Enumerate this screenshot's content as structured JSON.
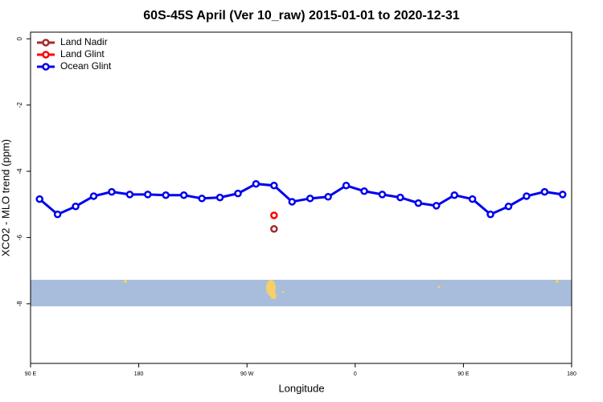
{
  "chart_data": {
    "type": "line",
    "title": "60S-45S April (Ver 10_raw)   2015-01-01 to 2020-12-31",
    "x_label": "Longitude",
    "y_label": "XCO2 - MLO trend (ppm)",
    "xlim": [
      90,
      540
    ],
    "xticks": [
      {
        "value": 90,
        "label": "90 E"
      },
      {
        "value": 180,
        "label": "180"
      },
      {
        "value": 270,
        "label": "90 W"
      },
      {
        "value": 360,
        "label": "0"
      },
      {
        "value": 450,
        "label": "90 E"
      },
      {
        "value": 540,
        "label": "180"
      }
    ],
    "ylim": [
      -9.8,
      0.2
    ],
    "yticks": [
      0,
      -2,
      -4,
      -6,
      -8
    ],
    "grid": false,
    "legend": "top-left",
    "series": [
      {
        "name": "Land Nadir",
        "color": "#a52a2a",
        "x": [
          292.5
        ],
        "values": [
          -5.74
        ]
      },
      {
        "name": "Land Glint",
        "color": "#ff0000",
        "x": [
          292.5
        ],
        "values": [
          -5.33
        ]
      },
      {
        "name": "Ocean Glint",
        "color": "#0000ee",
        "x": [
          97.5,
          112.5,
          127.5,
          142.5,
          157.5,
          172.5,
          187.5,
          202.5,
          217.5,
          232.5,
          247.5,
          262.5,
          277.5,
          292.5,
          307.5,
          322.5,
          337.5,
          352.5,
          367.5,
          382.5,
          397.5,
          412.5,
          427.5,
          442.5,
          457.5,
          472.5,
          487.5,
          502.5,
          517.5,
          532.5
        ],
        "values": [
          -4.84,
          -5.3,
          -5.06,
          -4.75,
          -4.62,
          -4.7,
          -4.7,
          -4.72,
          -4.72,
          -4.82,
          -4.79,
          -4.67,
          -4.38,
          -4.43,
          -4.92,
          -4.82,
          -4.77,
          -4.43,
          -4.6,
          -4.7,
          -4.79,
          -4.96,
          -5.04,
          -4.72,
          -4.84,
          -5.3,
          -5.06,
          -4.75,
          -4.62,
          -4.7
        ]
      }
    ]
  }
}
